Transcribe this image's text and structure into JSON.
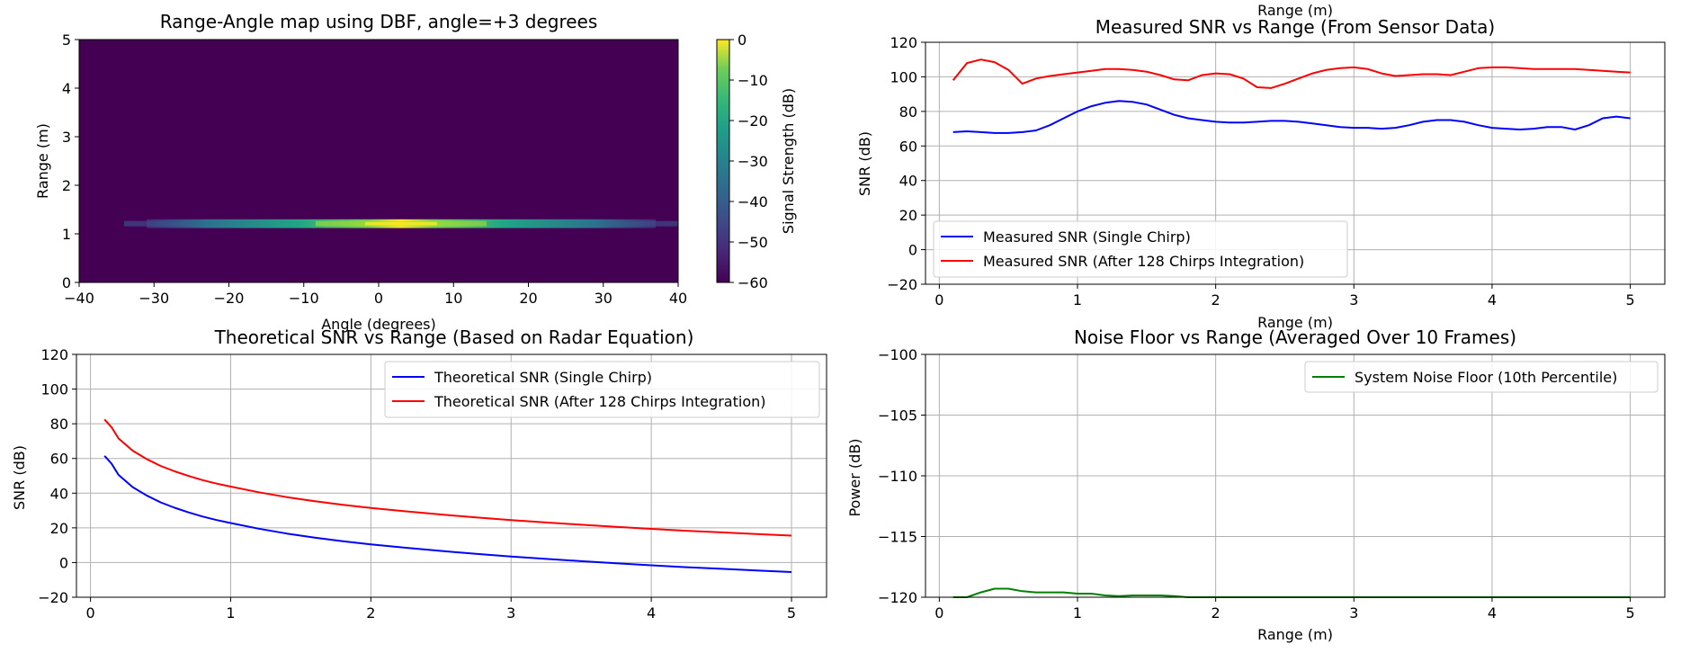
{
  "colors": {
    "blue": "#0000ff",
    "red": "#ff0000",
    "green": "#008000",
    "grid": "#b0b0b0",
    "heat_bg": "#440154"
  },
  "chart_data": [
    {
      "id": "heatmap",
      "type": "heatmap",
      "title": "Range-Angle map using DBF, angle=+3 degrees",
      "xlabel": "Angle (degrees)",
      "ylabel": "Range (m)",
      "xlim": [
        -40,
        40
      ],
      "ylim": [
        0,
        5
      ],
      "xticks": [
        -40,
        -30,
        -20,
        -10,
        0,
        10,
        20,
        30,
        40
      ],
      "yticks": [
        0,
        1,
        2,
        3,
        4,
        5
      ],
      "grid": false,
      "colormap": "viridis",
      "colorbar": {
        "label": "Signal Strength (dB)",
        "range": [
          -60,
          0
        ],
        "ticks": [
          0,
          -10,
          -20,
          -30,
          -40,
          -50,
          -60
        ]
      },
      "background_db": -60,
      "peak": {
        "angle": 3,
        "range": 1.2,
        "db": 0
      },
      "band": {
        "range_min": 1.12,
        "range_max": 1.3,
        "angle_extent": [
          -31,
          37
        ]
      }
    },
    {
      "id": "measured",
      "type": "line",
      "title": "Measured SNR vs Range (From Sensor Data)",
      "top_label": "Range (m)",
      "xlabel": "Range (m)",
      "ylabel": "SNR (dB)",
      "xlim": [
        -0.1,
        5.25
      ],
      "ylim": [
        -20,
        120
      ],
      "xticks": [
        0,
        1,
        2,
        3,
        4,
        5
      ],
      "yticks": [
        -20,
        0,
        20,
        40,
        60,
        80,
        100,
        120
      ],
      "grid": true,
      "legend_position": "lower-left",
      "series": [
        {
          "name": "Measured SNR (Single Chirp)",
          "color": "#0000ff",
          "x": [
            0.1,
            0.2,
            0.3,
            0.4,
            0.5,
            0.6,
            0.7,
            0.8,
            0.9,
            1.0,
            1.1,
            1.2,
            1.3,
            1.4,
            1.5,
            1.6,
            1.7,
            1.8,
            1.9,
            2.0,
            2.1,
            2.2,
            2.3,
            2.4,
            2.5,
            2.6,
            2.7,
            2.8,
            2.9,
            3.0,
            3.1,
            3.2,
            3.3,
            3.4,
            3.5,
            3.6,
            3.7,
            3.8,
            3.9,
            4.0,
            4.1,
            4.2,
            4.3,
            4.4,
            4.5,
            4.6,
            4.7,
            4.8,
            4.9,
            5.0
          ],
          "y": [
            68,
            68.5,
            68,
            67.5,
            67.5,
            68,
            69,
            72,
            76,
            80,
            83,
            85,
            86,
            85.5,
            84,
            81,
            78,
            76,
            75,
            74,
            73.5,
            73.5,
            74,
            74.5,
            74.5,
            74,
            73,
            72,
            71,
            70.5,
            70.5,
            70,
            70.5,
            72,
            74,
            75,
            75,
            74,
            72,
            70.5,
            70,
            69.5,
            70,
            71,
            71,
            69.5,
            72,
            76,
            77,
            76
          ]
        },
        {
          "name": "Measured SNR (After 128 Chirps Integration)",
          "color": "#ff0000",
          "x": [
            0.1,
            0.2,
            0.3,
            0.4,
            0.5,
            0.6,
            0.7,
            0.8,
            0.9,
            1.0,
            1.1,
            1.2,
            1.3,
            1.4,
            1.5,
            1.6,
            1.7,
            1.8,
            1.9,
            2.0,
            2.1,
            2.2,
            2.3,
            2.4,
            2.5,
            2.6,
            2.7,
            2.8,
            2.9,
            3.0,
            3.1,
            3.2,
            3.3,
            3.4,
            3.5,
            3.6,
            3.7,
            3.8,
            3.9,
            4.0,
            4.1,
            4.2,
            4.3,
            4.4,
            4.5,
            4.6,
            4.7,
            4.8,
            4.9,
            5.0
          ],
          "y": [
            98,
            108,
            110,
            108.5,
            104,
            96,
            99,
            100.5,
            101.5,
            102.5,
            103.5,
            104.5,
            104.5,
            104,
            103,
            101,
            98.5,
            98,
            101,
            102,
            101.5,
            99,
            94,
            93.5,
            96,
            99,
            102,
            104,
            105,
            105.5,
            104.5,
            102,
            100.5,
            101,
            101.5,
            101.5,
            101,
            103,
            105,
            105.5,
            105.5,
            105,
            104.5,
            104.5,
            104.5,
            104.5,
            104,
            103.5,
            103,
            102.5
          ]
        }
      ]
    },
    {
      "id": "theoretical",
      "type": "line",
      "title": "Theoretical SNR vs Range (Based on Radar Equation)",
      "xlabel": "",
      "ylabel": "SNR (dB)",
      "xlim": [
        -0.1,
        5.25
      ],
      "ylim": [
        -20,
        120
      ],
      "xticks": [
        0,
        1,
        2,
        3,
        4,
        5
      ],
      "yticks": [
        -20,
        0,
        20,
        40,
        60,
        80,
        100,
        120
      ],
      "grid": true,
      "legend_position": "upper-right",
      "series": [
        {
          "name": "Theoretical SNR (Single Chirp)",
          "color": "#0000ff",
          "x": [
            0.1,
            0.15,
            0.2,
            0.25,
            0.3,
            0.4,
            0.5,
            0.6,
            0.7,
            0.8,
            0.9,
            1.0,
            1.2,
            1.4,
            1.6,
            1.8,
            2.0,
            2.25,
            2.5,
            2.75,
            3.0,
            3.25,
            3.5,
            3.75,
            4.0,
            4.25,
            4.5,
            4.75,
            5.0
          ],
          "y": [
            61.5,
            57,
            50.5,
            47,
            43.5,
            38.7,
            34.7,
            31.6,
            28.9,
            26.5,
            24.5,
            22.8,
            19.5,
            16.7,
            14.4,
            12.3,
            10.5,
            8.5,
            6.7,
            5.0,
            3.5,
            2.1,
            0.8,
            -0.4,
            -1.6,
            -2.7,
            -3.6,
            -4.6,
            -5.5
          ]
        },
        {
          "name": "Theoretical SNR (After 128 Chirps Integration)",
          "color": "#ff0000",
          "x": [
            0.1,
            0.15,
            0.2,
            0.25,
            0.3,
            0.4,
            0.5,
            0.6,
            0.7,
            0.8,
            0.9,
            1.0,
            1.2,
            1.4,
            1.6,
            1.8,
            2.0,
            2.25,
            2.5,
            2.75,
            3.0,
            3.25,
            3.5,
            3.75,
            4.0,
            4.25,
            4.5,
            4.75,
            5.0
          ],
          "y": [
            82.5,
            78,
            71.5,
            68,
            64.5,
            59.7,
            55.7,
            52.6,
            49.9,
            47.5,
            45.5,
            43.8,
            40.5,
            37.7,
            35.4,
            33.3,
            31.5,
            29.5,
            27.7,
            26.0,
            24.5,
            23.1,
            21.8,
            20.6,
            19.4,
            18.3,
            17.4,
            16.4,
            15.5
          ]
        }
      ]
    },
    {
      "id": "noise",
      "type": "line",
      "title": "Noise Floor vs Range (Averaged Over 10 Frames)",
      "xlabel": "Range (m)",
      "ylabel": "Power (dB)",
      "xlim": [
        -0.1,
        5.25
      ],
      "ylim": [
        -120,
        -100
      ],
      "xticks": [
        0,
        1,
        2,
        3,
        4,
        5
      ],
      "yticks": [
        -120,
        -115,
        -110,
        -105,
        -100
      ],
      "grid": true,
      "legend_position": "upper-right",
      "series": [
        {
          "name": "System Noise Floor (10th Percentile)",
          "color": "#008000",
          "x": [
            0.1,
            0.2,
            0.3,
            0.4,
            0.5,
            0.6,
            0.7,
            0.8,
            0.9,
            1.0,
            1.1,
            1.2,
            1.3,
            1.4,
            1.5,
            1.6,
            1.7,
            1.8,
            1.9,
            2.0,
            3.0,
            4.0,
            5.0
          ],
          "y": [
            -120,
            -120,
            -119.6,
            -119.3,
            -119.3,
            -119.5,
            -119.6,
            -119.6,
            -119.6,
            -119.7,
            -119.7,
            -119.85,
            -119.9,
            -119.85,
            -119.85,
            -119.85,
            -119.9,
            -120,
            -120,
            -120,
            -120,
            -120,
            -120
          ]
        }
      ]
    }
  ]
}
